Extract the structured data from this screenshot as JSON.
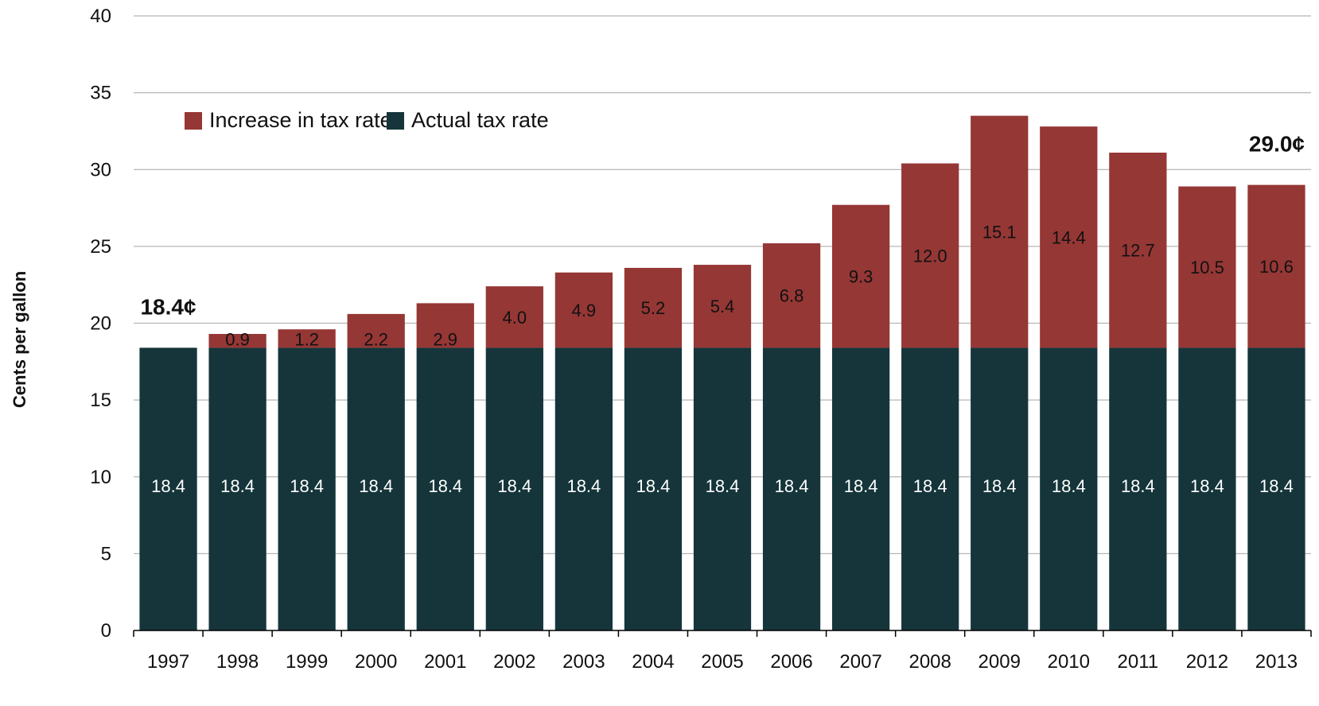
{
  "chart_data": {
    "type": "bar",
    "stacked": true,
    "ylabel": "Cents per gallon",
    "ylim": [
      0,
      40
    ],
    "yticks": [
      "0",
      "5",
      "10",
      "15",
      "20",
      "25",
      "30",
      "35",
      "40"
    ],
    "categories": [
      "1997",
      "1998",
      "1999",
      "2000",
      "2001",
      "2002",
      "2003",
      "2004",
      "2005",
      "2006",
      "2007",
      "2008",
      "2009",
      "2010",
      "2011",
      "2012",
      "2013"
    ],
    "series": [
      {
        "name": "Actual tax rate",
        "color": "#15353a",
        "values": [
          18.4,
          18.4,
          18.4,
          18.4,
          18.4,
          18.4,
          18.4,
          18.4,
          18.4,
          18.4,
          18.4,
          18.4,
          18.4,
          18.4,
          18.4,
          18.4,
          18.4
        ],
        "labels": [
          "18.4",
          "18.4",
          "18.4",
          "18.4",
          "18.4",
          "18.4",
          "18.4",
          "18.4",
          "18.4",
          "18.4",
          "18.4",
          "18.4",
          "18.4",
          "18.4",
          "18.4",
          "18.4",
          "18.4"
        ]
      },
      {
        "name": "Increase in tax rate",
        "color": "#953735",
        "values": [
          0,
          0.9,
          1.2,
          2.2,
          2.9,
          4.0,
          4.9,
          5.2,
          5.4,
          6.8,
          9.3,
          12.0,
          15.1,
          14.4,
          12.7,
          10.5,
          10.6
        ],
        "labels": [
          "",
          "0.9",
          "1.2",
          "2.2",
          "2.9",
          "4.0",
          "4.9",
          "5.2",
          "5.4",
          "6.8",
          "9.3",
          "12.0",
          "15.1",
          "14.4",
          "12.7",
          "10.5",
          "10.6"
        ]
      }
    ],
    "legend": {
      "position": "top-left",
      "entries": [
        {
          "label": "Increase in tax rate",
          "color": "#953735"
        },
        {
          "label": "Actual tax rate",
          "color": "#15353a"
        }
      ]
    },
    "annotations": [
      {
        "text": "18.4¢",
        "category": "1997",
        "value": 18.4
      },
      {
        "text": "29.0¢",
        "category": "2013",
        "value": 29.0
      }
    ],
    "grid": true
  }
}
